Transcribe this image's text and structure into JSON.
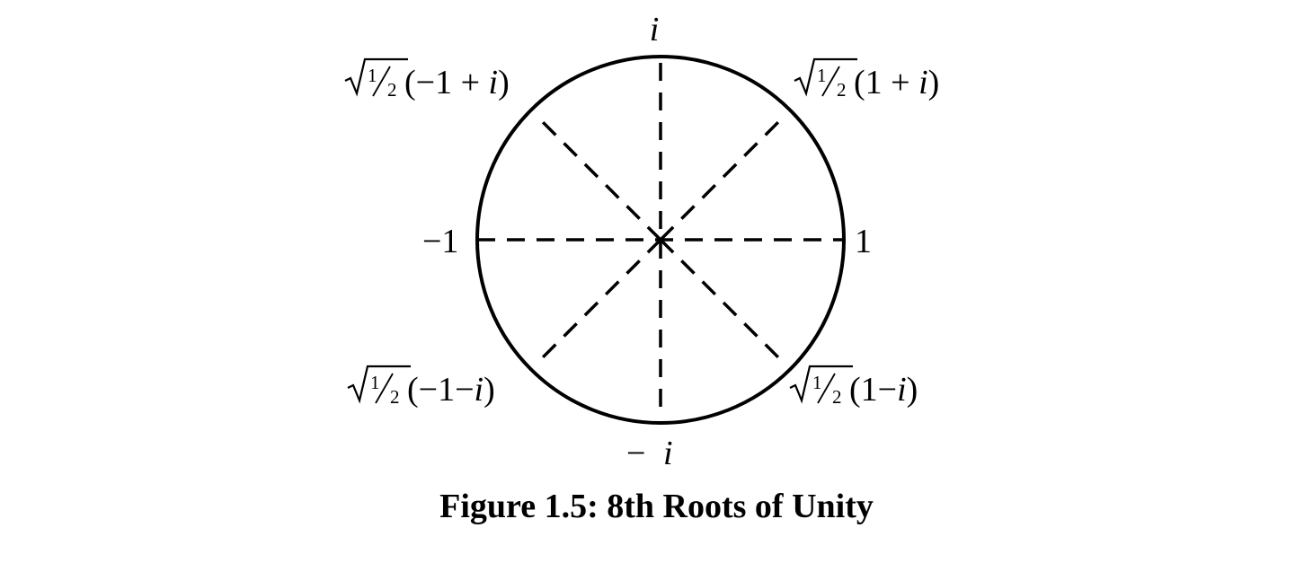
{
  "figure": {
    "caption": "Figure 1.5: 8th Roots of Unity"
  },
  "labels": {
    "top": "i",
    "bottom_minus": "−",
    "bottom_i": "i",
    "left": "−1",
    "right": "1"
  },
  "roots": [
    {
      "id": "upper-right",
      "prefix": "1/2",
      "expr_parts": [
        "(1 + ",
        "i",
        ")"
      ]
    },
    {
      "id": "upper-left",
      "prefix": "1/2",
      "expr_parts": [
        "(−1 + ",
        "i",
        ")"
      ]
    },
    {
      "id": "lower-left",
      "prefix": "1/2",
      "expr_parts": [
        "(−1−",
        "i",
        ")"
      ]
    },
    {
      "id": "lower-right",
      "prefix": "1/2",
      "expr_parts": [
        "(1−",
        "i",
        ")"
      ]
    }
  ],
  "fraction": {
    "numerator": "1",
    "denominator": "2"
  },
  "colors": {
    "ink": "#000000",
    "background": "#ffffff"
  }
}
